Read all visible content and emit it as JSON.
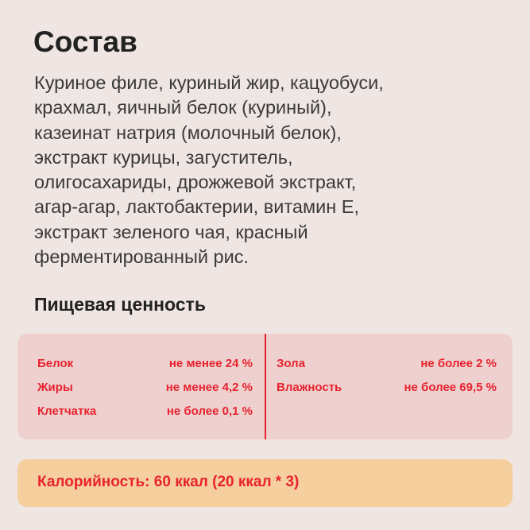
{
  "title": "Состав",
  "ingredients_lines": [
    "Куриное филе, куриный жир, кацуобуси,",
    "крахмал, яичный белок (куриный),",
    "казеинат натрия (молочный белок),",
    "экстракт курицы, загуститель,",
    "олигосахариды, дрожжевой экстракт,",
    "агар-агар, лактобактерии, витамин Е,",
    "экстракт зеленого чая, красный",
    "ферментированный рис."
  ],
  "nutrition_title": "Пищевая ценность",
  "nutrition_left": [
    {
      "label": "Белок",
      "value": "не менее 24 %"
    },
    {
      "label": "Жиры",
      "value": "не менее 4,2 %"
    },
    {
      "label": "Клетчатка",
      "value": "не более 0,1 %"
    }
  ],
  "nutrition_right": [
    {
      "label": "Зола",
      "value": "не более 2 %"
    },
    {
      "label": "Влажность",
      "value": "не более 69,5 %"
    }
  ],
  "calories": "Калорийность: 60 ккал (20 ккал * 3)",
  "colors": {
    "background": "#efe5e2",
    "accent": "#e8222e",
    "nutrition_box": "#eed1cf",
    "calorie_box": "#f5cf9e"
  }
}
